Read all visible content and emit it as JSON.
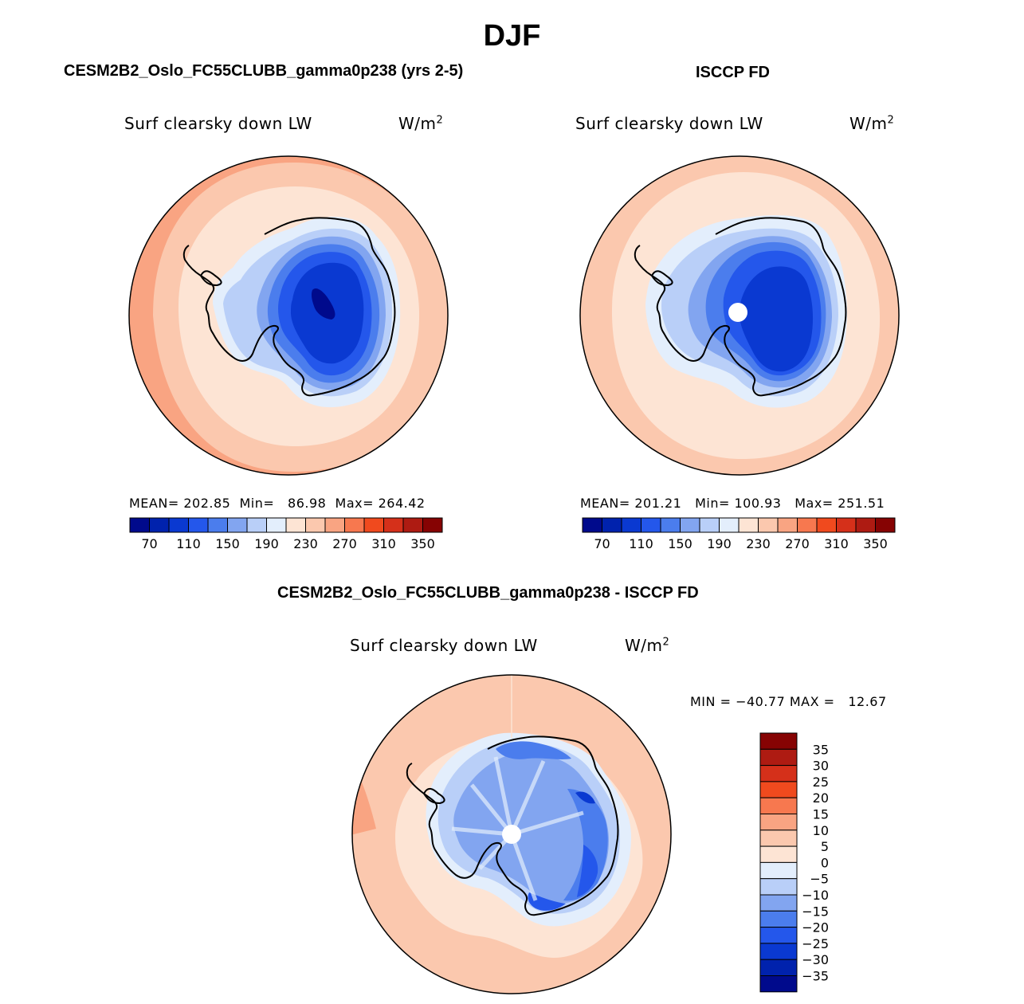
{
  "page_title": "DJF",
  "panels": {
    "model": {
      "title": "CESM2B2_Oslo_FC55CLUBB_gamma0p238 (yrs 2-5)",
      "variable": "Surf clearsky down LW",
      "units": "W/m",
      "units_sup": "2",
      "stats": {
        "mean_label": "MEAN=",
        "mean": "202.85",
        "min_label": "Min=",
        "min": "86.98",
        "max_label": "Max=",
        "max": "264.42"
      }
    },
    "obs": {
      "title": "ISCCP FD",
      "variable": "Surf clearsky down LW",
      "units": "W/m",
      "units_sup": "2",
      "stats": {
        "mean_label": "MEAN=",
        "mean": "201.21",
        "min_label": "Min=",
        "min": "100.93",
        "max_label": "Max=",
        "max": "251.51"
      }
    },
    "diff": {
      "title": "CESM2B2_Oslo_FC55CLUBB_gamma0p238 - ISCCP FD",
      "variable": "Surf clearsky down LW",
      "units": "W/m",
      "units_sup": "2",
      "stats_text": "MIN = −40.77 MAX =   12.67"
    }
  },
  "colorbar_abs": {
    "colors": [
      "#000a8c",
      "#0022ad",
      "#0a39d1",
      "#2457eb",
      "#4b7ded",
      "#82a5f0",
      "#b9cff8",
      "#e3eefc",
      "#fde4d4",
      "#fbc8ae",
      "#f9a482",
      "#f7784f",
      "#f04a1e",
      "#d5301a",
      "#ae1b12",
      "#860303"
    ],
    "labels": [
      "70",
      "110",
      "150",
      "190",
      "230",
      "270",
      "310",
      "350"
    ]
  },
  "colorbar_diff": {
    "colors": [
      "#860303",
      "#ae1b12",
      "#d5301a",
      "#f04a1e",
      "#f7784f",
      "#f9a482",
      "#fbc8ae",
      "#fde4d4",
      "#e3eefc",
      "#b9cff8",
      "#82a5f0",
      "#4b7ded",
      "#2457eb",
      "#0a39d1",
      "#0022ad",
      "#000a8c"
    ],
    "labels": [
      "35",
      "30",
      "25",
      "20",
      "15",
      "10",
      "5",
      "0",
      "−5",
      "−10",
      "−15",
      "−20",
      "−25",
      "−30",
      "−35"
    ]
  },
  "colors": {
    "outer_ring": "#f9a482",
    "mid_ring": "#fbc8ae",
    "inner_ring": "#fde4d4",
    "coast": "#000000"
  }
}
